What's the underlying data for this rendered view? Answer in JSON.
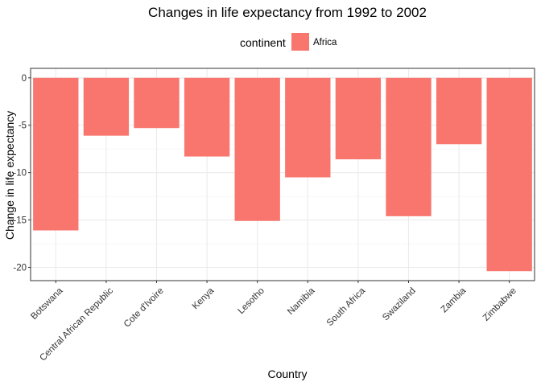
{
  "chart_data": {
    "type": "bar",
    "title": "Changes in life expectancy from 1992 to 2002",
    "xlabel": "Country",
    "ylabel": "Change in life expectancy",
    "categories": [
      "Botswana",
      "Central African Republic",
      "Cote d'Ivoire",
      "Kenya",
      "Lesotho",
      "Namibia",
      "South Africa",
      "Swaziland",
      "Zambia",
      "Zimbabwe"
    ],
    "series": [
      {
        "name": "Africa",
        "color": "#F8766D",
        "values": [
          -16.1,
          -6.1,
          -5.3,
          -8.3,
          -15.1,
          -10.5,
          -8.6,
          -14.6,
          -7.0,
          -20.4
        ]
      }
    ],
    "ylim": [
      -21.4,
      1.0
    ],
    "yticks": [
      0,
      -5,
      -10,
      -15,
      -20
    ],
    "ytick_labels": [
      "0",
      "-5",
      "-10",
      "-15",
      "-20"
    ],
    "grid": true,
    "legend": {
      "title": "continent",
      "position": "top",
      "entries": [
        "Africa"
      ]
    }
  }
}
